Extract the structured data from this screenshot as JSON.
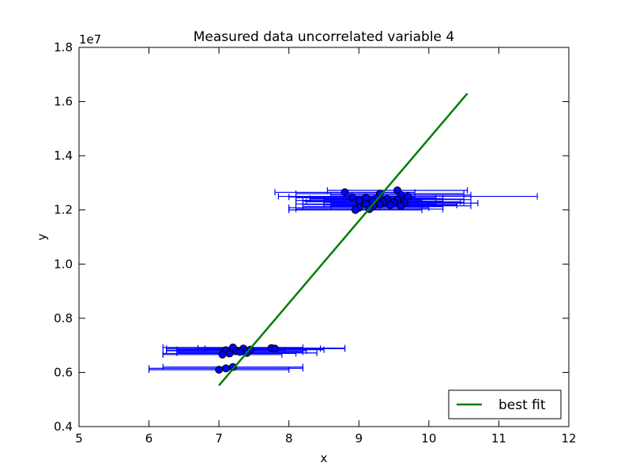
{
  "chart_data": {
    "type": "scatter",
    "title": "Measured data uncorrelated variable 4",
    "xlabel": "x",
    "ylabel": "y",
    "offset_label": "1e7",
    "xlim": [
      5,
      12
    ],
    "ylim": [
      0.4,
      1.8
    ],
    "y_scale_note": "values in units of 1e7",
    "xticks": [
      "5",
      "6",
      "7",
      "8",
      "9",
      "10",
      "11",
      "12"
    ],
    "yticks": [
      "0.4",
      "0.6",
      "0.8",
      "1.0",
      "1.2",
      "1.4",
      "1.6",
      "1.8"
    ],
    "grid": false,
    "legend": {
      "placement": "bottom-right",
      "entries": [
        "best fit"
      ]
    },
    "colors": {
      "errorbar": "#0000ff",
      "marker": "#0000ff",
      "marker_edge": "#000000",
      "fit": "#007f00"
    },
    "series": [
      {
        "type": "errorbar-scatter",
        "points": [
          {
            "x": 7.2,
            "y": 0.692,
            "xerr": 1.0
          },
          {
            "x": 7.35,
            "y": 0.688,
            "xerr": 1.1
          },
          {
            "x": 7.75,
            "y": 0.69,
            "xerr": 1.05
          },
          {
            "x": 7.8,
            "y": 0.688,
            "xerr": 1.0
          },
          {
            "x": 7.1,
            "y": 0.682,
            "xerr": 0.85
          },
          {
            "x": 7.25,
            "y": 0.68,
            "xerr": 1.0
          },
          {
            "x": 7.45,
            "y": 0.684,
            "xerr": 1.05
          },
          {
            "x": 7.3,
            "y": 0.676,
            "xerr": 0.9
          },
          {
            "x": 7.15,
            "y": 0.67,
            "xerr": 0.95
          },
          {
            "x": 7.4,
            "y": 0.672,
            "xerr": 1.0
          },
          {
            "x": 7.05,
            "y": 0.666,
            "xerr": 0.85
          },
          {
            "x": 7.2,
            "y": 0.62,
            "xerr": 1.0
          },
          {
            "x": 7.1,
            "y": 0.615,
            "xerr": 1.1
          },
          {
            "x": 7.0,
            "y": 0.61,
            "xerr": 1.0
          },
          {
            "x": 8.8,
            "y": 1.265,
            "xerr": 1.0
          },
          {
            "x": 9.55,
            "y": 1.272,
            "xerr": 1.0
          },
          {
            "x": 9.3,
            "y": 1.26,
            "xerr": 1.2
          },
          {
            "x": 9.6,
            "y": 1.255,
            "xerr": 1.0
          },
          {
            "x": 9.7,
            "y": 1.25,
            "xerr": 1.85
          },
          {
            "x": 8.9,
            "y": 1.248,
            "xerr": 0.9
          },
          {
            "x": 9.1,
            "y": 1.245,
            "xerr": 1.0
          },
          {
            "x": 9.25,
            "y": 1.242,
            "xerr": 0.95
          },
          {
            "x": 9.4,
            "y": 1.24,
            "xerr": 1.1
          },
          {
            "x": 9.55,
            "y": 1.238,
            "xerr": 1.05
          },
          {
            "x": 9.0,
            "y": 1.235,
            "xerr": 0.9
          },
          {
            "x": 9.2,
            "y": 1.232,
            "xerr": 1.0
          },
          {
            "x": 9.35,
            "y": 1.23,
            "xerr": 1.1
          },
          {
            "x": 9.5,
            "y": 1.228,
            "xerr": 1.0
          },
          {
            "x": 9.65,
            "y": 1.225,
            "xerr": 1.05
          },
          {
            "x": 9.1,
            "y": 1.222,
            "xerr": 1.0
          },
          {
            "x": 9.3,
            "y": 1.22,
            "xerr": 1.1
          },
          {
            "x": 9.45,
            "y": 1.218,
            "xerr": 0.95
          },
          {
            "x": 9.6,
            "y": 1.215,
            "xerr": 1.0
          },
          {
            "x": 9.2,
            "y": 1.212,
            "xerr": 1.0
          },
          {
            "x": 9.0,
            "y": 1.208,
            "xerr": 1.0
          },
          {
            "x": 9.15,
            "y": 1.203,
            "xerr": 1.05
          },
          {
            "x": 8.95,
            "y": 1.2,
            "xerr": 0.95
          }
        ]
      },
      {
        "name": "best fit",
        "type": "line",
        "x": [
          7.0,
          10.55
        ],
        "y": [
          0.552,
          1.63
        ]
      }
    ]
  }
}
